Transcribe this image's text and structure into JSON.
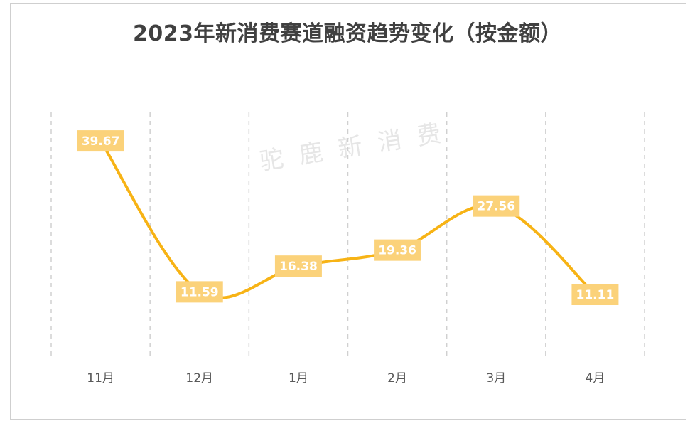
{
  "title": "2023年新消费赛道融资趋势变化（按金额）",
  "watermark": "驼鹿新消费",
  "colors": {
    "line": "#f7b315",
    "label_bg": "#fbd27a",
    "label_text": "#ffffff",
    "grid": "#d0d0d0"
  },
  "chart_data": {
    "type": "line",
    "smooth": true,
    "categories": [
      "11月",
      "12月",
      "1月",
      "2月",
      "3月",
      "4月"
    ],
    "values": [
      39.67,
      11.59,
      16.38,
      19.36,
      27.56,
      11.11
    ],
    "data_labels": [
      "39.67",
      "11.59",
      "16.38",
      "19.36",
      "27.56",
      "11.11"
    ],
    "title": "2023年新消费赛道融资趋势变化（按金额）",
    "xlabel": "",
    "ylabel": "",
    "ylim": [
      0,
      45
    ],
    "grid": "vertical-dashed",
    "legend": "none"
  }
}
